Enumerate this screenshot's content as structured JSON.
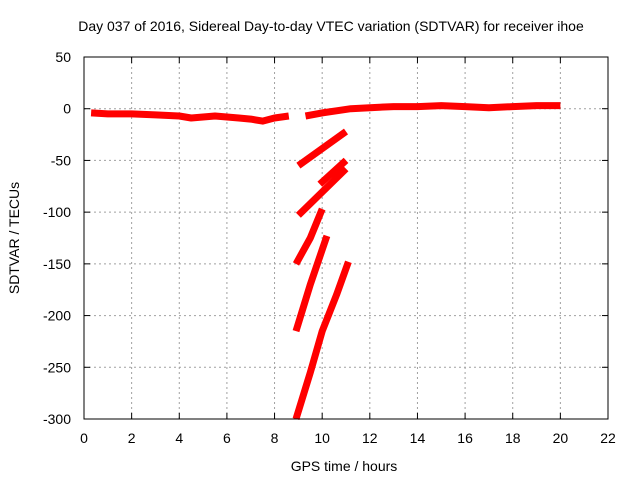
{
  "chart_data": {
    "type": "line",
    "title": "Day 037 of 2016, Sidereal Day-to-day VTEC variation (SDTVAR) for receiver ihoe",
    "xlabel": "GPS time / hours",
    "ylabel": "SDTVAR / TECUs",
    "xlim": [
      0,
      22
    ],
    "ylim": [
      -300,
      50
    ],
    "xticks": [
      0,
      2,
      4,
      6,
      8,
      10,
      12,
      14,
      16,
      18,
      20,
      22
    ],
    "yticks": [
      50,
      0,
      -50,
      -100,
      -150,
      -200,
      -250,
      -300
    ],
    "grid": true,
    "series_color": "#ff0000",
    "series": [
      {
        "name": "main-pre",
        "x": [
          0.3,
          1,
          2,
          3,
          4,
          4.5,
          5,
          5.5,
          6,
          6.5,
          7,
          7.5,
          8,
          8.6
        ],
        "y": [
          -4,
          -5,
          -5,
          -6,
          -7,
          -9,
          -8,
          -7,
          -8,
          -9,
          -10,
          -12,
          -9,
          -7
        ]
      },
      {
        "name": "main-post",
        "x": [
          9.3,
          10,
          10.6,
          11.2,
          12,
          13,
          14,
          15,
          16,
          17,
          18,
          19,
          20
        ],
        "y": [
          -7,
          -4,
          -2,
          0,
          1,
          2,
          2,
          3,
          2,
          1,
          2,
          3,
          3
        ]
      },
      {
        "name": "arc-1",
        "x": [
          9,
          11
        ],
        "y": [
          -55,
          -22
        ]
      },
      {
        "name": "arc-2",
        "x": [
          9.9,
          11
        ],
        "y": [
          -73,
          -50
        ]
      },
      {
        "name": "arc-3",
        "x": [
          9,
          11
        ],
        "y": [
          -103,
          -58
        ]
      },
      {
        "name": "arc-4",
        "x": [
          8.9,
          9.5,
          10
        ],
        "y": [
          -150,
          -125,
          -97
        ]
      },
      {
        "name": "arc-5",
        "x": [
          8.9,
          9.5,
          10.2
        ],
        "y": [
          -215,
          -170,
          -123
        ]
      },
      {
        "name": "arc-6",
        "x": [
          8.9,
          9.5,
          10,
          10.6,
          11.1
        ],
        "y": [
          -300,
          -255,
          -215,
          -180,
          -148
        ]
      }
    ]
  }
}
